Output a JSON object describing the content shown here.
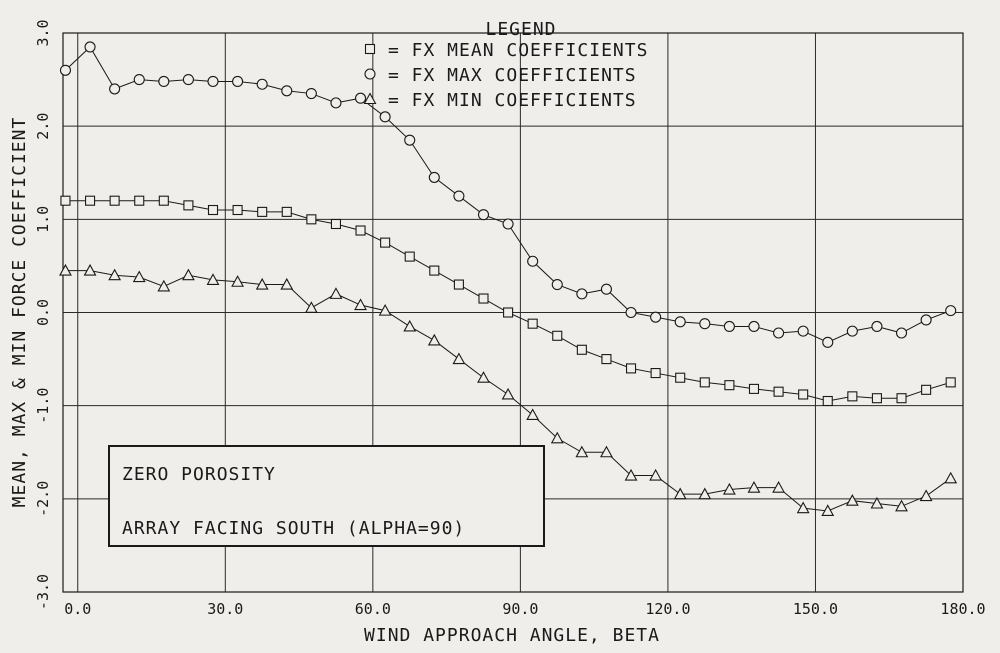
{
  "chart_data": {
    "type": "line",
    "title": "",
    "legend": {
      "heading": "LEGEND",
      "placement": "top-center",
      "entries": [
        {
          "marker": "square",
          "label": "= FX MEAN COEFFICIENTS"
        },
        {
          "marker": "circle",
          "label": "= FX MAX COEFFICIENTS"
        },
        {
          "marker": "triangle",
          "label": "= FX MIN COEFFICIENTS"
        }
      ]
    },
    "xlabel": "WIND APPROACH ANGLE, BETA",
    "ylabel": "MEAN, MAX & MIN FORCE COEFFICIENT",
    "xlim": [
      -3,
      180
    ],
    "ylim": [
      -3.0,
      3.0
    ],
    "xticks": [
      {
        "value": 0,
        "label": "0.0"
      },
      {
        "value": 30,
        "label": "30.0"
      },
      {
        "value": 60,
        "label": "60.0"
      },
      {
        "value": 90,
        "label": "90.0"
      },
      {
        "value": 120,
        "label": "120.0"
      },
      {
        "value": 150,
        "label": "150.0"
      },
      {
        "value": 180,
        "label": "180.0"
      }
    ],
    "yticks": [
      {
        "value": -3.0,
        "label": "-3.0"
      },
      {
        "value": -2.0,
        "label": "-2.0"
      },
      {
        "value": -1.0,
        "label": "-1.0"
      },
      {
        "value": 0.0,
        "label": "0.0"
      },
      {
        "value": 1.0,
        "label": "1.0"
      },
      {
        "value": 2.0,
        "label": "2.0"
      },
      {
        "value": 3.0,
        "label": "3.0"
      }
    ],
    "grid": true,
    "annotation": {
      "lines": [
        "ZERO POROSITY",
        "ARRAY FACING SOUTH (ALPHA=90)"
      ]
    },
    "x": [
      -2.5,
      2.5,
      7.5,
      12.5,
      17.5,
      22.5,
      27.5,
      32.5,
      37.5,
      42.5,
      47.5,
      52.5,
      57.5,
      62.5,
      67.5,
      72.5,
      77.5,
      82.5,
      87.5,
      92.5,
      97.5,
      102.5,
      107.5,
      112.5,
      117.5,
      122.5,
      127.5,
      132.5,
      137.5,
      142.5,
      147.5,
      152.5,
      157.5,
      162.5,
      167.5,
      172.5,
      177.5
    ],
    "series": [
      {
        "marker": "square",
        "values": [
          1.2,
          1.2,
          1.2,
          1.2,
          1.2,
          1.15,
          1.1,
          1.1,
          1.08,
          1.08,
          1.0,
          0.95,
          0.88,
          0.75,
          0.6,
          0.45,
          0.3,
          0.15,
          0.0,
          -0.12,
          -0.25,
          -0.4,
          -0.5,
          -0.6,
          -0.65,
          -0.7,
          -0.75,
          -0.78,
          -0.82,
          -0.85,
          -0.88,
          -0.95,
          -0.9,
          -0.92,
          -0.92,
          -0.83,
          -0.75
        ]
      },
      {
        "marker": "circle",
        "values": [
          2.6,
          2.85,
          2.4,
          2.5,
          2.48,
          2.5,
          2.48,
          2.48,
          2.45,
          2.38,
          2.35,
          2.25,
          2.3,
          2.1,
          1.85,
          1.45,
          1.25,
          1.05,
          0.95,
          0.55,
          0.3,
          0.2,
          0.25,
          0.0,
          -0.05,
          -0.1,
          -0.12,
          -0.15,
          -0.15,
          -0.22,
          -0.2,
          -0.32,
          -0.2,
          -0.15,
          -0.22,
          -0.08,
          0.02
        ]
      },
      {
        "marker": "triangle",
        "values": [
          0.45,
          0.45,
          0.4,
          0.38,
          0.28,
          0.4,
          0.35,
          0.33,
          0.3,
          0.3,
          0.05,
          0.2,
          0.08,
          0.02,
          -0.15,
          -0.3,
          -0.5,
          -0.7,
          -0.88,
          -1.1,
          -1.35,
          -1.5,
          -1.5,
          -1.75,
          -1.75,
          -1.95,
          -1.95,
          -1.9,
          -1.88,
          -1.88,
          -2.1,
          -2.13,
          -2.02,
          -2.05,
          -2.08,
          -1.97,
          -1.78
        ]
      }
    ]
  }
}
